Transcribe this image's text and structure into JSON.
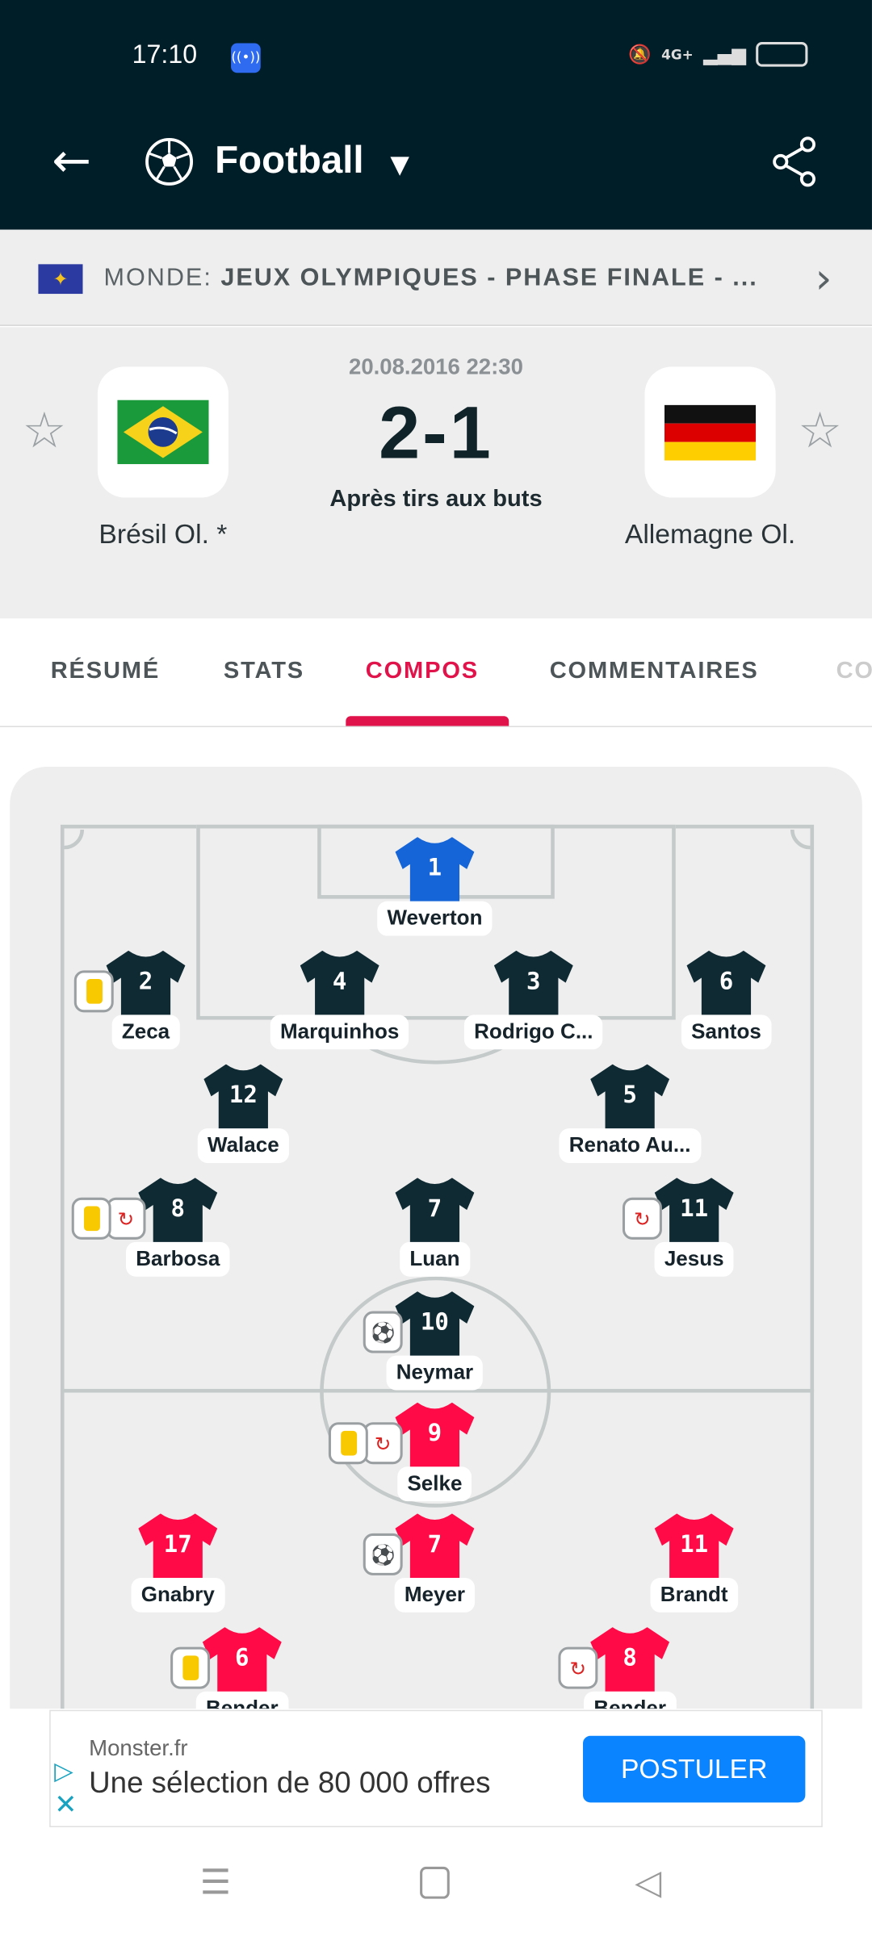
{
  "status_bar": {
    "time": "17:10",
    "network": "4G+",
    "icons": [
      "hotspot-icon",
      "bell-muted-icon",
      "signal-icon",
      "battery-icon"
    ]
  },
  "header": {
    "title": "Football",
    "sport_icon": "soccer-ball-icon"
  },
  "competition": {
    "prefix": "MONDE:",
    "name": "JEUX OLYMPIQUES - PHASE FINALE - ..."
  },
  "match": {
    "date": "20.08.2016 22:30",
    "score": "2-1",
    "note": "Après tirs aux buts",
    "home": {
      "name": "Brésil Ol. *",
      "flag": "brazil"
    },
    "away": {
      "name": "Allemagne Ol.",
      "flag": "germany"
    }
  },
  "tabs": [
    {
      "label": "RÉSUMÉ"
    },
    {
      "label": "STATS"
    },
    {
      "label": "COMPOS",
      "active": true
    },
    {
      "label": "COMMENTAIRES"
    },
    {
      "label": "CO"
    }
  ],
  "colors": {
    "home_shirt": "#0f2a33",
    "home_keeper": "#1565d8",
    "away_shirt": "#ff0a47",
    "accent": "#e0144b",
    "header": "#001e28"
  },
  "lineup": [
    {
      "team": "home",
      "number": "1",
      "name": "Weverton",
      "keeper": true,
      "events": []
    },
    {
      "team": "home",
      "number": "2",
      "name": "Zeca",
      "events": [
        "yellow-card"
      ]
    },
    {
      "team": "home",
      "number": "4",
      "name": "Marquinhos",
      "events": []
    },
    {
      "team": "home",
      "number": "3",
      "name": "Rodrigo C...",
      "events": []
    },
    {
      "team": "home",
      "number": "6",
      "name": "Santos",
      "events": []
    },
    {
      "team": "home",
      "number": "12",
      "name": "Walace",
      "events": []
    },
    {
      "team": "home",
      "number": "5",
      "name": "Renato Au...",
      "events": []
    },
    {
      "team": "home",
      "number": "8",
      "name": "Barbosa",
      "events": [
        "yellow-card",
        "substitution"
      ]
    },
    {
      "team": "home",
      "number": "7",
      "name": "Luan",
      "events": []
    },
    {
      "team": "home",
      "number": "11",
      "name": "Jesus",
      "events": [
        "substitution"
      ]
    },
    {
      "team": "home",
      "number": "10",
      "name": "Neymar",
      "events": [
        "goal"
      ]
    },
    {
      "team": "away",
      "number": "9",
      "name": "Selke",
      "events": [
        "yellow-card",
        "substitution"
      ]
    },
    {
      "team": "away",
      "number": "17",
      "name": "Gnabry",
      "events": []
    },
    {
      "team": "away",
      "number": "7",
      "name": "Meyer",
      "events": [
        "goal"
      ]
    },
    {
      "team": "away",
      "number": "11",
      "name": "Brandt",
      "events": []
    },
    {
      "team": "away",
      "number": "6",
      "name": "Bender",
      "events": [
        "yellow-card"
      ]
    },
    {
      "team": "away",
      "number": "8",
      "name": "Bender",
      "events": [
        "substitution"
      ]
    }
  ],
  "ad": {
    "source": "Monster.fr",
    "text": "Une sélection de 80 000 offres",
    "cta": "POSTULER"
  }
}
